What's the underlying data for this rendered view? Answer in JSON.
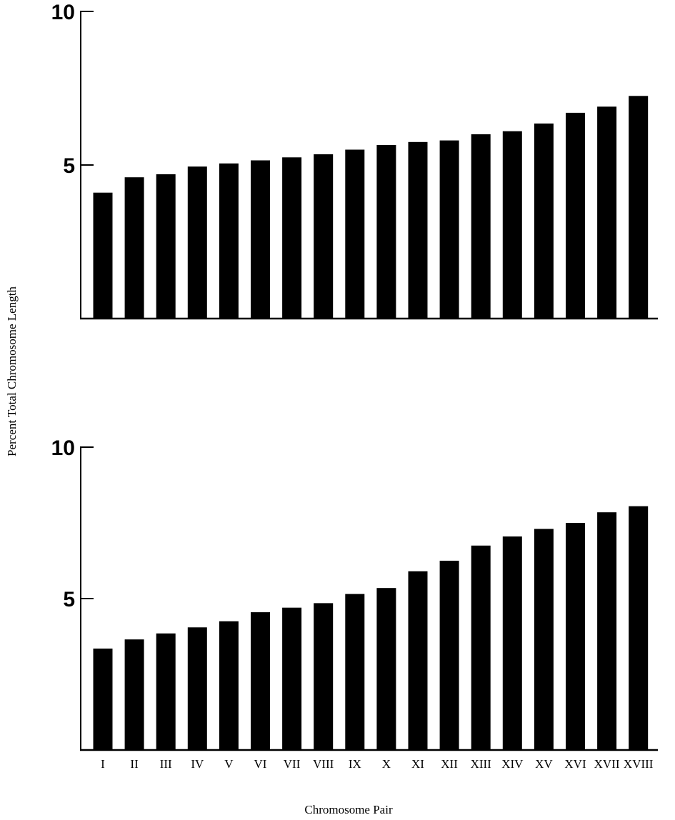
{
  "figure": {
    "ylabel": "Percent Total Chromosome Length",
    "xlabel": "Chromosome Pair",
    "bar_color": "#000000",
    "axis_color": "#000000",
    "background": "#ffffff"
  },
  "chart_data": [
    {
      "type": "bar",
      "categories": [
        "I",
        "II",
        "III",
        "IV",
        "V",
        "VI",
        "VII",
        "VIII",
        "IX",
        "X",
        "XI",
        "XII",
        "XIII",
        "XIV",
        "XV",
        "XVI",
        "XVII",
        "XVIII"
      ],
      "values": [
        4.1,
        4.6,
        4.7,
        4.95,
        5.05,
        5.15,
        5.25,
        5.35,
        5.5,
        5.65,
        5.75,
        5.8,
        6.0,
        6.1,
        6.35,
        6.7,
        6.9,
        7.25
      ],
      "ylim": [
        0,
        10
      ],
      "yticks": [
        "5",
        "10"
      ],
      "show_x_tick_labels": false,
      "grid": false
    },
    {
      "type": "bar",
      "categories": [
        "I",
        "II",
        "III",
        "IV",
        "V",
        "VI",
        "VII",
        "VIII",
        "IX",
        "X",
        "XI",
        "XII",
        "XIII",
        "XIV",
        "XV",
        "XVI",
        "XVII",
        "XVIII"
      ],
      "values": [
        3.35,
        3.65,
        3.85,
        4.05,
        4.25,
        4.55,
        4.7,
        4.85,
        5.15,
        5.35,
        5.9,
        6.25,
        6.75,
        7.05,
        7.3,
        7.5,
        7.85,
        8.05
      ],
      "ylim": [
        0,
        10
      ],
      "yticks": [
        "5",
        "10"
      ],
      "show_x_tick_labels": true,
      "grid": false
    }
  ]
}
